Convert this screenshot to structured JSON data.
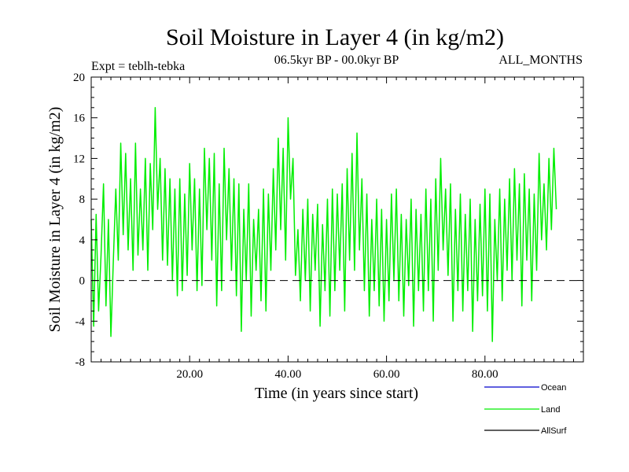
{
  "chart_data": {
    "type": "line",
    "title": "Soil Moisture in Layer 4 (in kg/m2)",
    "subtitle_left": "Expt = teblh-tebka",
    "subtitle_center": "06.5kyr BP - 00.0kyr BP",
    "subtitle_right": "ALL_MONTHS",
    "xlabel": "Time (in years since start)",
    "ylabel": "Soil Moisture in Layer 4 (in kg/m2)",
    "xlim": [
      0,
      100
    ],
    "ylim": [
      -8,
      20
    ],
    "x_ticks": [
      20,
      40,
      60,
      80
    ],
    "x_tick_labels": [
      "20.00",
      "40.00",
      "60.00",
      "80.00"
    ],
    "y_ticks": [
      -8,
      -4,
      0,
      4,
      8,
      12,
      16,
      20
    ],
    "y_tick_labels": [
      "-8",
      "-4",
      "0",
      "4",
      "8",
      "12",
      "16",
      "20"
    ],
    "zero_line": 0,
    "series": [
      {
        "name": "Land",
        "color": "#00ee00",
        "x_start": 0,
        "x_step": 0.5,
        "values": [
          6.0,
          -4.5,
          6.5,
          -3.0,
          2.5,
          9.5,
          -2.5,
          6.0,
          -5.5,
          2.0,
          9.0,
          2.0,
          13.5,
          4.5,
          12.5,
          3.0,
          10.0,
          1.0,
          13.5,
          2.5,
          9.0,
          3.0,
          12.0,
          1.0,
          11.5,
          5.0,
          17.0,
          7.0,
          12.0,
          2.0,
          11.0,
          1.5,
          10.0,
          0.0,
          9.0,
          -1.5,
          10.0,
          -1.0,
          8.5,
          0.5,
          11.5,
          3.0,
          10.0,
          -1.0,
          9.0,
          -0.5,
          13.0,
          5.0,
          12.0,
          2.0,
          12.5,
          -2.5,
          9.5,
          -1.0,
          13.0,
          4.0,
          11.0,
          1.0,
          10.0,
          -1.5,
          9.5,
          -5.0,
          7.0,
          0.0,
          9.5,
          -3.5,
          6.0,
          1.0,
          7.0,
          -2.0,
          9.0,
          -3.0,
          8.5,
          1.0,
          11.0,
          3.0,
          14.0,
          5.0,
          13.0,
          2.0,
          16.0,
          8.0,
          12.0,
          0.5,
          5.0,
          -2.0,
          7.0,
          0.0,
          8.0,
          -3.0,
          6.5,
          1.0,
          7.5,
          -4.5,
          5.5,
          -1.0,
          8.0,
          -3.5,
          9.0,
          -1.0,
          8.5,
          1.0,
          9.5,
          -3.0,
          11.0,
          2.0,
          12.5,
          1.0,
          14.5,
          3.0,
          10.0,
          -1.0,
          8.5,
          -3.5,
          6.0,
          -1.0,
          8.0,
          -2.5,
          7.0,
          -4.0,
          6.0,
          -2.0,
          8.5,
          0.0,
          9.0,
          -2.0,
          6.5,
          -3.5,
          6.0,
          -0.5,
          8.0,
          -4.5,
          7.0,
          -1.0,
          6.5,
          -3.0,
          9.0,
          -1.0,
          8.0,
          -4.0,
          10.0,
          1.0,
          12.0,
          3.0,
          9.0,
          0.5,
          9.5,
          -4.0,
          7.0,
          -1.0,
          8.5,
          -3.0,
          6.5,
          -1.0,
          8.0,
          -5.0,
          6.0,
          -2.0,
          7.5,
          -1.5,
          9.0,
          -3.0,
          8.5,
          -6.0,
          6.0,
          0.0,
          9.0,
          -2.0,
          8.0,
          1.0,
          10.0,
          0.0,
          11.0,
          2.0,
          9.5,
          -2.5,
          10.5,
          2.0,
          9.0,
          -2.0,
          8.5,
          1.0,
          12.5,
          4.0,
          9.5,
          3.0,
          12.0,
          5.0,
          13.0,
          7.0
        ]
      }
    ],
    "legend": [
      {
        "label": "Ocean",
        "color": "#0000cc"
      },
      {
        "label": "Land",
        "color": "#00ee00"
      },
      {
        "label": "AllSurf",
        "color": "#000000"
      }
    ],
    "legend_position": "bottom-right",
    "grid": false
  }
}
